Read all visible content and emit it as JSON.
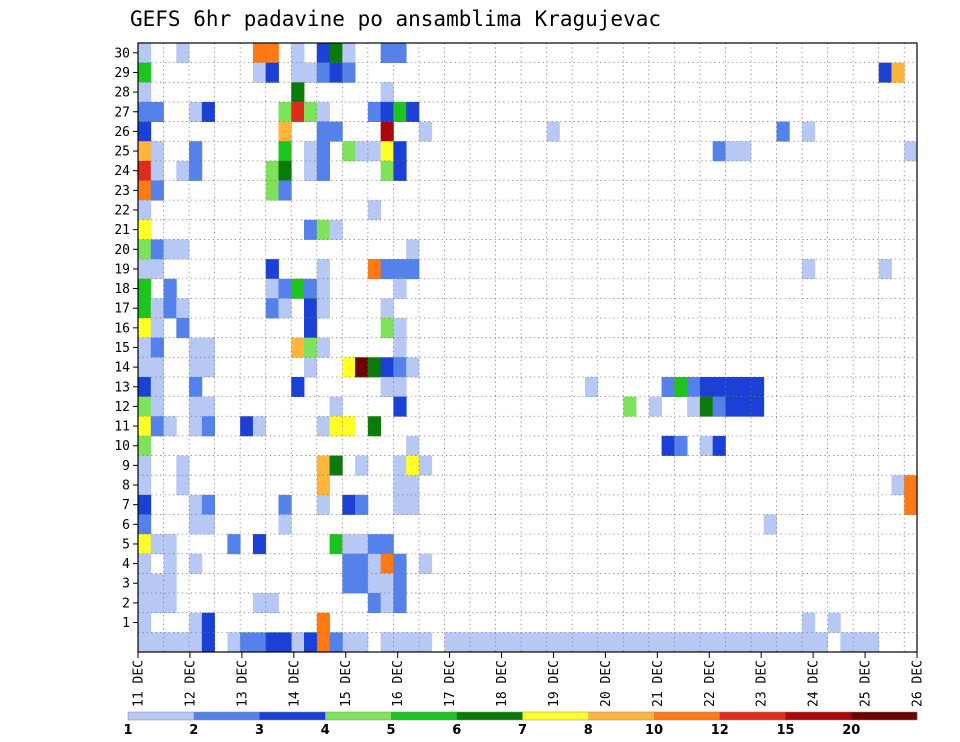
{
  "chart_data": {
    "type": "heatmap",
    "title": "GEFS 6hr padavine po ansamblima Kragujevac",
    "xlabel": "",
    "ylabel": "",
    "x_tick_labels": [
      "11 DEC",
      "12 DEC",
      "13 DEC",
      "14 DEC",
      "15 DEC",
      "16 DEC",
      "17 DEC",
      "18 DEC",
      "19 DEC",
      "20 DEC",
      "21 DEC",
      "22 DEC",
      "23 DEC",
      "24 DEC",
      "25 DEC",
      "26 DEC"
    ],
    "y_tick_labels": [
      "1",
      "2",
      "3",
      "4",
      "5",
      "6",
      "7",
      "8",
      "9",
      "10",
      "11",
      "12",
      "13",
      "14",
      "15",
      "16",
      "17",
      "18",
      "19",
      "20",
      "21",
      "22",
      "23",
      "24",
      "25",
      "26",
      "27",
      "28",
      "29",
      "30"
    ],
    "time_steps": 61,
    "members": 31,
    "grid": "dotted",
    "colorbar": {
      "labels": [
        "1",
        "2",
        "3",
        "4",
        "5",
        "6",
        "7",
        "8",
        "10",
        "12",
        "15",
        "20"
      ],
      "colors": [
        "#b8c8f5",
        "#5582ea",
        "#1a40d6",
        "#7ee35b",
        "#1ec41e",
        "#0a7a0a",
        "#ffff26",
        "#ffb53a",
        "#ff7a14",
        "#e02a1a",
        "#a80808",
        "#6e0000"
      ]
    },
    "cell_format": "[member, step_from_11_DEC_00Z, color_class] where class 0=1-2 mm, 1=2-3, 2=3-4, 3=4-5, 4=5-6, 5=6-7, 6=7-8, 7=8-10, 8=10-12, 9=12-15, 10=15-20, 11=>20",
    "cells": [
      [
        30,
        0,
        0
      ],
      [
        30,
        3,
        0
      ],
      [
        30,
        9,
        8
      ],
      [
        30,
        10,
        8
      ],
      [
        30,
        12,
        0
      ],
      [
        30,
        14,
        2
      ],
      [
        30,
        15,
        5
      ],
      [
        30,
        16,
        0
      ],
      [
        30,
        19,
        1
      ],
      [
        30,
        20,
        1
      ],
      [
        29,
        0,
        4
      ],
      [
        29,
        9,
        0
      ],
      [
        29,
        10,
        2
      ],
      [
        29,
        12,
        0
      ],
      [
        29,
        13,
        0
      ],
      [
        29,
        14,
        1
      ],
      [
        29,
        15,
        2
      ],
      [
        29,
        16,
        1
      ],
      [
        29,
        58,
        2
      ],
      [
        29,
        59,
        7
      ],
      [
        28,
        0,
        0
      ],
      [
        28,
        12,
        5
      ],
      [
        28,
        19,
        0
      ],
      [
        27,
        0,
        1
      ],
      [
        27,
        1,
        1
      ],
      [
        27,
        4,
        0
      ],
      [
        27,
        5,
        2
      ],
      [
        27,
        11,
        3
      ],
      [
        27,
        12,
        9
      ],
      [
        27,
        13,
        3
      ],
      [
        27,
        14,
        0
      ],
      [
        27,
        18,
        1
      ],
      [
        27,
        19,
        2
      ],
      [
        27,
        20,
        4
      ],
      [
        27,
        21,
        2
      ],
      [
        26,
        0,
        2
      ],
      [
        26,
        11,
        7
      ],
      [
        26,
        14,
        1
      ],
      [
        26,
        15,
        1
      ],
      [
        26,
        19,
        10
      ],
      [
        26,
        22,
        0
      ],
      [
        26,
        32,
        0
      ],
      [
        26,
        50,
        1
      ],
      [
        26,
        52,
        0
      ],
      [
        25,
        0,
        7
      ],
      [
        25,
        1,
        0
      ],
      [
        25,
        4,
        1
      ],
      [
        25,
        11,
        4
      ],
      [
        25,
        13,
        0
      ],
      [
        25,
        14,
        1
      ],
      [
        25,
        16,
        3
      ],
      [
        25,
        17,
        0
      ],
      [
        25,
        18,
        0
      ],
      [
        25,
        19,
        6
      ],
      [
        25,
        20,
        2
      ],
      [
        25,
        45,
        1
      ],
      [
        25,
        46,
        0
      ],
      [
        25,
        47,
        0
      ],
      [
        25,
        60,
        0
      ],
      [
        24,
        0,
        9
      ],
      [
        24,
        1,
        0
      ],
      [
        24,
        3,
        0
      ],
      [
        24,
        4,
        1
      ],
      [
        24,
        10,
        3
      ],
      [
        24,
        11,
        5
      ],
      [
        24,
        13,
        0
      ],
      [
        24,
        14,
        1
      ],
      [
        24,
        19,
        3
      ],
      [
        24,
        20,
        2
      ],
      [
        23,
        0,
        8
      ],
      [
        23,
        1,
        1
      ],
      [
        23,
        10,
        3
      ],
      [
        23,
        11,
        1
      ],
      [
        22,
        0,
        0
      ],
      [
        22,
        18,
        0
      ],
      [
        21,
        0,
        6
      ],
      [
        21,
        13,
        1
      ],
      [
        21,
        14,
        3
      ],
      [
        21,
        15,
        0
      ],
      [
        20,
        0,
        3
      ],
      [
        20,
        1,
        1
      ],
      [
        20,
        2,
        0
      ],
      [
        20,
        3,
        0
      ],
      [
        20,
        21,
        0
      ],
      [
        19,
        0,
        0
      ],
      [
        19,
        1,
        0
      ],
      [
        19,
        10,
        2
      ],
      [
        19,
        14,
        0
      ],
      [
        19,
        18,
        8
      ],
      [
        19,
        19,
        1
      ],
      [
        19,
        20,
        1
      ],
      [
        19,
        21,
        1
      ],
      [
        19,
        52,
        0
      ],
      [
        19,
        58,
        0
      ],
      [
        18,
        0,
        4
      ],
      [
        18,
        2,
        1
      ],
      [
        18,
        10,
        0
      ],
      [
        18,
        11,
        1
      ],
      [
        18,
        12,
        4
      ],
      [
        18,
        13,
        1
      ],
      [
        18,
        14,
        0
      ],
      [
        18,
        20,
        0
      ],
      [
        17,
        0,
        4
      ],
      [
        17,
        1,
        0
      ],
      [
        17,
        2,
        1
      ],
      [
        17,
        3,
        0
      ],
      [
        17,
        10,
        1
      ],
      [
        17,
        11,
        0
      ],
      [
        17,
        13,
        2
      ],
      [
        17,
        14,
        0
      ],
      [
        17,
        19,
        0
      ],
      [
        16,
        0,
        6
      ],
      [
        16,
        1,
        0
      ],
      [
        16,
        3,
        1
      ],
      [
        16,
        13,
        2
      ],
      [
        16,
        19,
        3
      ],
      [
        16,
        20,
        0
      ],
      [
        15,
        0,
        0
      ],
      [
        15,
        1,
        1
      ],
      [
        15,
        4,
        0
      ],
      [
        15,
        5,
        0
      ],
      [
        15,
        12,
        7
      ],
      [
        15,
        13,
        3
      ],
      [
        15,
        14,
        0
      ],
      [
        15,
        20,
        0
      ],
      [
        14,
        0,
        0
      ],
      [
        14,
        1,
        0
      ],
      [
        14,
        4,
        0
      ],
      [
        14,
        5,
        0
      ],
      [
        14,
        13,
        0
      ],
      [
        14,
        16,
        6
      ],
      [
        14,
        17,
        11
      ],
      [
        14,
        18,
        5
      ],
      [
        14,
        19,
        2
      ],
      [
        14,
        20,
        1
      ],
      [
        14,
        21,
        0
      ],
      [
        13,
        0,
        2
      ],
      [
        13,
        1,
        0
      ],
      [
        13,
        4,
        1
      ],
      [
        13,
        12,
        2
      ],
      [
        13,
        19,
        0
      ],
      [
        13,
        20,
        0
      ],
      [
        13,
        35,
        0
      ],
      [
        13,
        41,
        1
      ],
      [
        13,
        42,
        4
      ],
      [
        13,
        43,
        1
      ],
      [
        13,
        44,
        2
      ],
      [
        13,
        45,
        2
      ],
      [
        13,
        46,
        2
      ],
      [
        13,
        47,
        2
      ],
      [
        13,
        48,
        2
      ],
      [
        12,
        0,
        3
      ],
      [
        12,
        1,
        0
      ],
      [
        12,
        4,
        0
      ],
      [
        12,
        5,
        0
      ],
      [
        12,
        15,
        0
      ],
      [
        12,
        20,
        2
      ],
      [
        12,
        38,
        3
      ],
      [
        12,
        40,
        0
      ],
      [
        12,
        43,
        0
      ],
      [
        12,
        44,
        5
      ],
      [
        12,
        45,
        1
      ],
      [
        12,
        46,
        2
      ],
      [
        12,
        47,
        2
      ],
      [
        12,
        48,
        2
      ],
      [
        11,
        0,
        6
      ],
      [
        11,
        1,
        1
      ],
      [
        11,
        2,
        0
      ],
      [
        11,
        4,
        0
      ],
      [
        11,
        5,
        1
      ],
      [
        11,
        8,
        2
      ],
      [
        11,
        9,
        0
      ],
      [
        11,
        14,
        0
      ],
      [
        11,
        15,
        6
      ],
      [
        11,
        16,
        6
      ],
      [
        11,
        18,
        5
      ],
      [
        10,
        0,
        3
      ],
      [
        10,
        21,
        0
      ],
      [
        10,
        41,
        2
      ],
      [
        10,
        42,
        1
      ],
      [
        10,
        44,
        0
      ],
      [
        10,
        45,
        2
      ],
      [
        9,
        0,
        0
      ],
      [
        9,
        3,
        0
      ],
      [
        9,
        14,
        7
      ],
      [
        9,
        15,
        5
      ],
      [
        9,
        17,
        0
      ],
      [
        9,
        20,
        0
      ],
      [
        9,
        21,
        6
      ],
      [
        9,
        22,
        0
      ],
      [
        8,
        0,
        0
      ],
      [
        8,
        3,
        0
      ],
      [
        8,
        14,
        7
      ],
      [
        8,
        20,
        0
      ],
      [
        8,
        21,
        0
      ],
      [
        8,
        59,
        0
      ],
      [
        8,
        60,
        8
      ],
      [
        7,
        0,
        2
      ],
      [
        7,
        4,
        0
      ],
      [
        7,
        5,
        1
      ],
      [
        7,
        11,
        1
      ],
      [
        7,
        14,
        0
      ],
      [
        7,
        16,
        2
      ],
      [
        7,
        17,
        1
      ],
      [
        7,
        20,
        0
      ],
      [
        7,
        21,
        0
      ],
      [
        7,
        60,
        8
      ],
      [
        6,
        0,
        1
      ],
      [
        6,
        4,
        0
      ],
      [
        6,
        5,
        0
      ],
      [
        6,
        11,
        0
      ],
      [
        6,
        49,
        0
      ],
      [
        5,
        0,
        6
      ],
      [
        5,
        1,
        0
      ],
      [
        5,
        2,
        0
      ],
      [
        5,
        7,
        1
      ],
      [
        5,
        9,
        2
      ],
      [
        5,
        15,
        4
      ],
      [
        5,
        16,
        0
      ],
      [
        5,
        17,
        0
      ],
      [
        5,
        18,
        1
      ],
      [
        5,
        19,
        1
      ],
      [
        4,
        0,
        0
      ],
      [
        4,
        2,
        0
      ],
      [
        4,
        4,
        0
      ],
      [
        4,
        16,
        1
      ],
      [
        4,
        17,
        1
      ],
      [
        4,
        18,
        0
      ],
      [
        4,
        19,
        8
      ],
      [
        4,
        20,
        1
      ],
      [
        4,
        22,
        0
      ],
      [
        3,
        0,
        0
      ],
      [
        3,
        1,
        0
      ],
      [
        3,
        2,
        0
      ],
      [
        3,
        16,
        1
      ],
      [
        3,
        17,
        1
      ],
      [
        3,
        18,
        0
      ],
      [
        3,
        19,
        0
      ],
      [
        3,
        20,
        1
      ],
      [
        2,
        0,
        0
      ],
      [
        2,
        1,
        0
      ],
      [
        2,
        2,
        0
      ],
      [
        2,
        9,
        0
      ],
      [
        2,
        10,
        0
      ],
      [
        2,
        18,
        1
      ],
      [
        2,
        19,
        0
      ],
      [
        2,
        20,
        1
      ],
      [
        1,
        0,
        0
      ],
      [
        1,
        4,
        0
      ],
      [
        1,
        5,
        2
      ],
      [
        1,
        14,
        8
      ],
      [
        1,
        52,
        0
      ],
      [
        1,
        54,
        0
      ],
      [
        0,
        0,
        0
      ],
      [
        0,
        2,
        0
      ],
      [
        0,
        4,
        0
      ],
      [
        0,
        5,
        2
      ],
      [
        0,
        14,
        8
      ],
      [
        0,
        52,
        0
      ],
      [
        0,
        53,
        0
      ],
      [
        0,
        1,
        0
      ],
      [
        0,
        3,
        0
      ],
      [
        0,
        7,
        0
      ],
      [
        0,
        12,
        0
      ],
      [
        0,
        16,
        0
      ],
      [
        0,
        17,
        0
      ],
      [
        0,
        19,
        0
      ],
      [
        0,
        21,
        0
      ],
      [
        0,
        22,
        0
      ],
      [
        0,
        24,
        0
      ],
      [
        0,
        25,
        0
      ],
      [
        0,
        29,
        0
      ],
      [
        0,
        30,
        0
      ],
      [
        0,
        34,
        0
      ],
      [
        0,
        37,
        0
      ],
      [
        0,
        40,
        0
      ],
      [
        0,
        41,
        0
      ],
      [
        0,
        44,
        0
      ],
      [
        0,
        45,
        0
      ],
      [
        0,
        48,
        0
      ],
      [
        0,
        49,
        0
      ],
      [
        0,
        8,
        1
      ],
      [
        0,
        9,
        1
      ],
      [
        0,
        10,
        2
      ],
      [
        0,
        11,
        2
      ],
      [
        0,
        13,
        2
      ],
      [
        0,
        15,
        1
      ],
      [
        0,
        20,
        0
      ],
      [
        0,
        26,
        0
      ],
      [
        0,
        27,
        0
      ],
      [
        0,
        28,
        0
      ],
      [
        0,
        31,
        0
      ],
      [
        0,
        32,
        0
      ],
      [
        0,
        33,
        0
      ],
      [
        0,
        35,
        0
      ],
      [
        0,
        36,
        0
      ],
      [
        0,
        38,
        0
      ],
      [
        0,
        39,
        0
      ],
      [
        0,
        42,
        0
      ],
      [
        0,
        43,
        0
      ],
      [
        0,
        46,
        0
      ],
      [
        0,
        47,
        0
      ],
      [
        0,
        50,
        0
      ],
      [
        0,
        51,
        0
      ],
      [
        0,
        55,
        0
      ],
      [
        0,
        56,
        0
      ],
      [
        0,
        57,
        0
      ]
    ]
  }
}
